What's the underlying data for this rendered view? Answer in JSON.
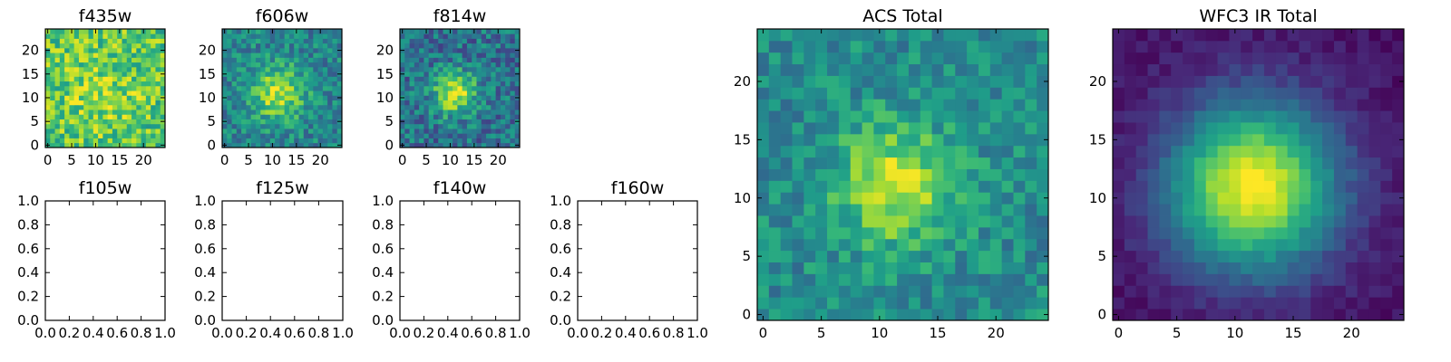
{
  "chart_data": [
    {
      "type": "heatmap",
      "title": "f435w",
      "colormap": "viridis",
      "xlim": [
        0,
        25
      ],
      "ylim": [
        0,
        25
      ],
      "xticks": [
        "0",
        "5",
        "10",
        "15",
        "20"
      ],
      "yticks": [
        "0",
        "5",
        "10",
        "15",
        "20"
      ],
      "image": {
        "grid": 25,
        "seed": 11,
        "base": 0.72,
        "peak": 0.12,
        "sigma": 6.0,
        "noise": 0.22,
        "center": [
          11.5,
          11.5
        ]
      }
    },
    {
      "type": "heatmap",
      "title": "f606w",
      "colormap": "viridis",
      "xlim": [
        0,
        25
      ],
      "ylim": [
        0,
        25
      ],
      "xticks": [
        "0",
        "5",
        "10",
        "15",
        "20"
      ],
      "yticks": [
        "0",
        "5",
        "10",
        "15",
        "20"
      ],
      "image": {
        "grid": 25,
        "seed": 23,
        "base": 0.45,
        "peak": 0.45,
        "sigma": 4.0,
        "noise": 0.18,
        "center": [
          11.5,
          11.5
        ]
      }
    },
    {
      "type": "heatmap",
      "title": "f814w",
      "colormap": "viridis",
      "xlim": [
        0,
        25
      ],
      "ylim": [
        0,
        25
      ],
      "xticks": [
        "0",
        "5",
        "10",
        "15",
        "20"
      ],
      "yticks": [
        "0",
        "5",
        "10",
        "15",
        "20"
      ],
      "image": {
        "grid": 25,
        "seed": 37,
        "base": 0.38,
        "peak": 0.55,
        "sigma": 3.2,
        "noise": 0.2,
        "center": [
          11.5,
          11.5
        ]
      }
    },
    {
      "type": "scatter",
      "title": "f105w",
      "empty": true,
      "xlim": [
        0,
        1
      ],
      "ylim": [
        0,
        1
      ],
      "xticks": [
        "0.0",
        "0.2",
        "0.4",
        "0.6",
        "0.8",
        "1.0"
      ],
      "yticks": [
        "0.0",
        "0.2",
        "0.4",
        "0.6",
        "0.8",
        "1.0"
      ]
    },
    {
      "type": "scatter",
      "title": "f125w",
      "empty": true,
      "xlim": [
        0,
        1
      ],
      "ylim": [
        0,
        1
      ],
      "xticks": [
        "0.0",
        "0.2",
        "0.4",
        "0.6",
        "0.8",
        "1.0"
      ],
      "yticks": [
        "0.0",
        "0.2",
        "0.4",
        "0.6",
        "0.8",
        "1.0"
      ]
    },
    {
      "type": "scatter",
      "title": "f140w",
      "empty": true,
      "xlim": [
        0,
        1
      ],
      "ylim": [
        0,
        1
      ],
      "xticks": [
        "0.0",
        "0.2",
        "0.4",
        "0.6",
        "0.8",
        "1.0"
      ],
      "yticks": [
        "0.0",
        "0.2",
        "0.4",
        "0.6",
        "0.8",
        "1.0"
      ]
    },
    {
      "type": "scatter",
      "title": "f160w",
      "empty": true,
      "xlim": [
        0,
        1
      ],
      "ylim": [
        0,
        1
      ],
      "xticks": [
        "0.0",
        "0.2",
        "0.4",
        "0.6",
        "0.8",
        "1.0"
      ],
      "yticks": [
        "0.0",
        "0.2",
        "0.4",
        "0.6",
        "0.8",
        "1.0"
      ]
    },
    {
      "type": "heatmap",
      "title": "ACS Total",
      "colormap": "viridis",
      "xlim": [
        0,
        25
      ],
      "ylim": [
        0,
        25
      ],
      "xticks": [
        "0",
        "5",
        "10",
        "15",
        "20"
      ],
      "yticks": [
        "0",
        "5",
        "10",
        "15",
        "20"
      ],
      "image": {
        "grid": 25,
        "seed": 51,
        "base": 0.48,
        "peak": 0.45,
        "sigma": 3.6,
        "noise": 0.15,
        "center": [
          12.0,
          11.5
        ]
      }
    },
    {
      "type": "heatmap",
      "title": "WFC3 IR Total",
      "colormap": "viridis",
      "xlim": [
        0,
        25
      ],
      "ylim": [
        0,
        25
      ],
      "xticks": [
        "0",
        "5",
        "10",
        "15",
        "20"
      ],
      "yticks": [
        "0",
        "5",
        "10",
        "15",
        "20"
      ],
      "image": {
        "grid": 25,
        "seed": 67,
        "base": 0.05,
        "peak": 0.95,
        "sigma": 5.0,
        "noise": 0.05,
        "center": [
          12.0,
          11.5
        ]
      }
    }
  ]
}
